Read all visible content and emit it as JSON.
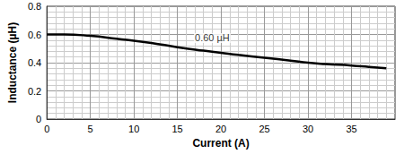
{
  "chart_data": {
    "type": "line",
    "x_label": "Current (A)",
    "y_label": "Inductance (µH)",
    "x": [
      0,
      2,
      5,
      8,
      10,
      12,
      15,
      18,
      20,
      22,
      25,
      28,
      30,
      32,
      35,
      37,
      39
    ],
    "values": [
      0.6,
      0.6,
      0.59,
      0.57,
      0.555,
      0.54,
      0.51,
      0.485,
      0.47,
      0.455,
      0.435,
      0.415,
      0.4,
      0.39,
      0.38,
      0.37,
      0.36
    ],
    "color": "#000000",
    "xlim": [
      0,
      40
    ],
    "xticks": [
      0,
      5,
      10,
      15,
      20,
      25,
      30,
      35
    ],
    "ylim": [
      0,
      0.8
    ],
    "yticks": [
      0,
      0.2,
      0.4,
      0.6,
      0.8
    ],
    "annotations": [
      {
        "text": "0.60 µH",
        "x": 19,
        "y": 0.575
      }
    ],
    "grid": true
  }
}
